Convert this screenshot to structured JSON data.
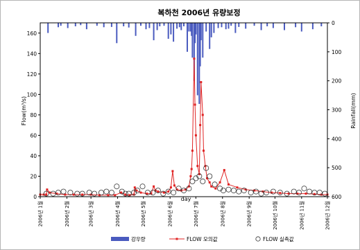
{
  "chart_data": {
    "type": "line",
    "title": "복하천 2006년 유량보정",
    "xlabel": "day",
    "ylabel": "Flow(m³/s)",
    "y2label": "Rainfall(mm)",
    "ylim": [
      0,
      170
    ],
    "yticks": [
      0,
      20,
      40,
      60,
      80,
      100,
      120,
      140,
      160
    ],
    "y2lim": [
      0,
      600
    ],
    "y2ticks": [
      0,
      100,
      200,
      300,
      400,
      500,
      600
    ],
    "y2_inverted": true,
    "xlim": [
      1,
      335
    ],
    "x_tick_labels": [
      "2006년 1월",
      "2006년 2월",
      "2006년 3월",
      "2006년 4월",
      "2006년 5월",
      "2006년 6월",
      "2006년 7월",
      "2006년 8월",
      "2006년 9월",
      "2006년 10월",
      "2006년 11월",
      "2006년 12월"
    ],
    "x_tick_days": [
      1,
      32,
      60,
      91,
      121,
      152,
      182,
      213,
      244,
      274,
      305,
      335
    ],
    "grid": false,
    "legend_position": "bottom",
    "colors": {
      "rainfall": "#4a5bbf",
      "simulated": "#e02323",
      "observed": "#333333",
      "axis": "#000000"
    },
    "series": [
      {
        "name": "강우량",
        "type": "bar",
        "axis": "y2",
        "x": [
          10,
          22,
          25,
          33,
          42,
          48,
          55,
          67,
          75,
          84,
          90,
          98,
          104,
          112,
          118,
          124,
          128,
          133,
          137,
          140,
          145,
          150,
          153,
          156,
          160,
          163,
          165,
          168,
          172,
          174,
          176,
          177,
          178,
          180,
          181,
          182,
          184,
          186,
          187,
          188,
          190,
          194,
          198,
          200,
          203,
          208,
          212,
          217,
          220,
          223,
          228,
          232,
          240,
          250,
          258,
          265,
          272,
          285,
          298,
          305,
          318,
          328
        ],
        "values": [
          35,
          15,
          10,
          18,
          12,
          8,
          22,
          10,
          15,
          14,
          70,
          12,
          16,
          45,
          10,
          22,
          18,
          60,
          25,
          12,
          10,
          55,
          40,
          65,
          20,
          15,
          25,
          12,
          100,
          30,
          30,
          45,
          120,
          200,
          70,
          40,
          250,
          280,
          150,
          60,
          120,
          30,
          90,
          50,
          35,
          18,
          15,
          22,
          20,
          10,
          35,
          14,
          20,
          10,
          25,
          12,
          18,
          25,
          15,
          30,
          22,
          12
        ]
      },
      {
        "name": "FLOW 모의값",
        "type": "line",
        "axis": "y",
        "x": [
          1,
          5,
          8,
          9,
          12,
          20,
          30,
          40,
          50,
          60,
          70,
          80,
          88,
          95,
          100,
          105,
          110,
          111,
          113,
          118,
          125,
          130,
          133,
          135,
          138,
          145,
          150,
          153,
          155,
          157,
          160,
          165,
          170,
          174,
          176,
          177,
          178,
          180,
          181,
          182,
          184,
          186,
          187,
          188,
          190,
          191,
          193,
          195,
          198,
          200,
          205,
          210,
          215,
          220,
          230,
          240,
          250,
          260,
          270,
          280,
          290,
          300,
          310,
          320,
          328,
          335
        ],
        "values": [
          2,
          2,
          2,
          7,
          4,
          3,
          2,
          2,
          2,
          2,
          1.5,
          1.5,
          1.5,
          4,
          2,
          1.5,
          2,
          9,
          6,
          4,
          3,
          3,
          10,
          6,
          5,
          4,
          5,
          9,
          25,
          11,
          7,
          6,
          7,
          10,
          20,
          27,
          45,
          135,
          90,
          60,
          30,
          22,
          70,
          112,
          80,
          45,
          30,
          18,
          14,
          10,
          8,
          14,
          26,
          12,
          9,
          7,
          6,
          5,
          4,
          3.5,
          3,
          3,
          3,
          2.5,
          2,
          2
        ]
      },
      {
        "name": "FLOW 실측값",
        "type": "scatter",
        "axis": "y",
        "x": [
          8,
          16,
          22,
          28,
          36,
          44,
          50,
          58,
          64,
          72,
          78,
          84,
          90,
          96,
          100,
          104,
          110,
          114,
          120,
          126,
          132,
          138,
          144,
          150,
          156,
          162,
          168,
          174,
          178,
          182,
          186,
          190,
          194,
          198,
          204,
          210,
          214,
          220,
          226,
          232,
          238,
          246,
          252,
          258,
          264,
          272,
          280,
          288,
          296,
          302,
          308,
          314,
          320,
          326,
          332
        ],
        "values": [
          3,
          3,
          4,
          5,
          4,
          3,
          3,
          4,
          3,
          4,
          5,
          4,
          10,
          5,
          3,
          3,
          4,
          6,
          10,
          4,
          4,
          6,
          3,
          5,
          4,
          8,
          6,
          8,
          15,
          18,
          20,
          15,
          28,
          20,
          12,
          8,
          6,
          7,
          6,
          5,
          6,
          4,
          5,
          3,
          4,
          5,
          4,
          3,
          5,
          4,
          8,
          5,
          4,
          4,
          3
        ]
      }
    ]
  }
}
